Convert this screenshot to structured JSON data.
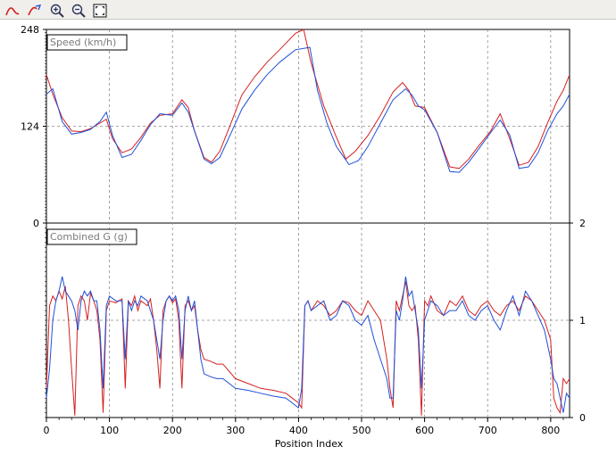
{
  "toolbar": {
    "items": [
      {
        "icon": "red-curve-icon"
      },
      {
        "icon": "curve-arrow-icon"
      },
      {
        "icon": "zoom-in-icon"
      },
      {
        "icon": "zoom-out-icon"
      },
      {
        "icon": "fit-to-screen-icon"
      }
    ]
  },
  "colors": {
    "series_red": "#d42020",
    "series_blue": "#2050d8",
    "grid": "#8a8a8a"
  },
  "chart_data": [
    {
      "type": "line",
      "title": "Speed (km/h)",
      "xlabel": "Position Index",
      "ylabel": "",
      "xlim": [
        0,
        830
      ],
      "ylim": [
        0,
        248
      ],
      "x_ticks": [
        "0",
        "100",
        "200",
        "300",
        "400",
        "500",
        "600",
        "700",
        "800"
      ],
      "y_ticks_left": [
        "248",
        "124",
        "0"
      ],
      "grid": true,
      "series": [
        {
          "color": "#d42020",
          "x": [
            0,
            10,
            25,
            40,
            55,
            70,
            85,
            95,
            105,
            120,
            135,
            150,
            165,
            180,
            200,
            215,
            225,
            235,
            250,
            262,
            275,
            290,
            310,
            330,
            350,
            370,
            395,
            408,
            420,
            440,
            460,
            475,
            490,
            510,
            530,
            550,
            565,
            575,
            585,
            600,
            620,
            640,
            655,
            670,
            685,
            705,
            720,
            735,
            750,
            765,
            780,
            795,
            810,
            820,
            830
          ],
          "y": [
            190,
            165,
            135,
            118,
            117,
            121,
            128,
            133,
            108,
            90,
            95,
            110,
            128,
            138,
            140,
            158,
            148,
            118,
            84,
            78,
            92,
            122,
            164,
            187,
            206,
            222,
            243,
            248,
            205,
            150,
            110,
            82,
            92,
            112,
            138,
            168,
            180,
            170,
            150,
            148,
            116,
            72,
            70,
            82,
            98,
            118,
            140,
            108,
            74,
            78,
            98,
            128,
            156,
            170,
            190
          ]
        },
        {
          "color": "#2050d8",
          "x": [
            0,
            10,
            25,
            40,
            55,
            70,
            85,
            95,
            105,
            120,
            135,
            150,
            165,
            180,
            200,
            215,
            225,
            235,
            250,
            262,
            275,
            290,
            310,
            330,
            350,
            370,
            395,
            418,
            430,
            445,
            460,
            480,
            495,
            510,
            530,
            550,
            570,
            580,
            590,
            600,
            620,
            640,
            655,
            670,
            685,
            705,
            720,
            735,
            750,
            765,
            780,
            795,
            810,
            820,
            830
          ],
          "y": [
            165,
            172,
            130,
            114,
            116,
            120,
            130,
            142,
            112,
            84,
            88,
            106,
            126,
            140,
            138,
            154,
            142,
            118,
            82,
            76,
            84,
            110,
            146,
            170,
            190,
            206,
            222,
            225,
            170,
            128,
            98,
            75,
            80,
            98,
            128,
            158,
            172,
            164,
            150,
            145,
            116,
            66,
            65,
            78,
            94,
            116,
            132,
            113,
            70,
            72,
            90,
            118,
            140,
            150,
            165
          ]
        }
      ]
    },
    {
      "type": "line",
      "title": "Combined G (g)",
      "xlabel": "Position Index",
      "ylabel": "",
      "xlim": [
        0,
        830
      ],
      "ylim": [
        0,
        2
      ],
      "y_ticks_right": [
        "2",
        "1",
        "0"
      ],
      "grid": true,
      "series": [
        {
          "color": "#d42020",
          "x": [
            0,
            5,
            10,
            15,
            20,
            25,
            30,
            35,
            40,
            45,
            50,
            55,
            60,
            65,
            70,
            75,
            80,
            85,
            90,
            95,
            100,
            110,
            120,
            125,
            130,
            135,
            140,
            145,
            150,
            160,
            165,
            170,
            175,
            180,
            185,
            190,
            195,
            200,
            205,
            210,
            215,
            220,
            225,
            230,
            235,
            240,
            245,
            250,
            260,
            270,
            280,
            300,
            320,
            340,
            360,
            380,
            390,
            400,
            405,
            410,
            415,
            420,
            430,
            440,
            450,
            460,
            470,
            480,
            490,
            500,
            510,
            520,
            530,
            540,
            545,
            550,
            555,
            560,
            565,
            570,
            575,
            580,
            585,
            590,
            595,
            600,
            605,
            610,
            620,
            630,
            640,
            650,
            660,
            670,
            680,
            690,
            700,
            710,
            720,
            730,
            740,
            750,
            760,
            770,
            780,
            790,
            800,
            805,
            810,
            815,
            820,
            825,
            830
          ],
          "y": [
            0.3,
            1.15,
            1.25,
            1.2,
            1.3,
            1.22,
            1.35,
            1.0,
            0.5,
            0.02,
            1.15,
            1.25,
            1.2,
            1.0,
            1.28,
            1.2,
            1.1,
            0.8,
            0.05,
            1.1,
            1.2,
            1.18,
            1.22,
            0.3,
            1.2,
            1.15,
            1.25,
            1.1,
            1.2,
            1.15,
            1.22,
            1.0,
            0.7,
            0.3,
            1.1,
            1.2,
            1.25,
            1.18,
            1.22,
            1.0,
            0.3,
            1.15,
            1.2,
            1.1,
            1.15,
            0.9,
            0.7,
            0.6,
            0.58,
            0.55,
            0.55,
            0.4,
            0.35,
            0.3,
            0.28,
            0.25,
            0.2,
            0.15,
            0.1,
            1.15,
            1.2,
            1.1,
            1.2,
            1.15,
            1.05,
            1.1,
            1.2,
            1.18,
            1.1,
            1.05,
            1.2,
            1.1,
            1.0,
            0.6,
            0.3,
            0.1,
            1.2,
            1.1,
            1.25,
            1.4,
            1.15,
            1.1,
            1.15,
            0.8,
            0.02,
            1.2,
            1.15,
            1.25,
            1.1,
            1.05,
            1.2,
            1.15,
            1.25,
            1.1,
            1.05,
            1.15,
            1.2,
            1.1,
            1.05,
            1.15,
            1.2,
            1.1,
            1.25,
            1.2,
            1.1,
            1.0,
            0.8,
            0.2,
            0.1,
            0.05,
            0.4,
            0.35,
            0.4
          ]
        },
        {
          "color": "#2050d8",
          "x": [
            0,
            5,
            10,
            15,
            20,
            25,
            30,
            35,
            40,
            45,
            50,
            55,
            60,
            65,
            70,
            75,
            80,
            85,
            90,
            95,
            100,
            110,
            120,
            125,
            130,
            135,
            140,
            145,
            150,
            160,
            165,
            170,
            175,
            180,
            185,
            190,
            195,
            200,
            205,
            210,
            215,
            220,
            225,
            230,
            235,
            240,
            245,
            250,
            260,
            270,
            280,
            300,
            320,
            340,
            360,
            380,
            390,
            400,
            405,
            410,
            415,
            420,
            430,
            440,
            450,
            460,
            470,
            480,
            490,
            500,
            510,
            520,
            530,
            540,
            545,
            550,
            555,
            560,
            565,
            570,
            575,
            580,
            585,
            590,
            595,
            600,
            605,
            610,
            620,
            630,
            640,
            650,
            660,
            670,
            680,
            690,
            700,
            710,
            720,
            730,
            740,
            750,
            760,
            770,
            780,
            790,
            800,
            805,
            810,
            815,
            820,
            825,
            830
          ],
          "y": [
            0.2,
            0.5,
            1.0,
            1.2,
            1.3,
            1.45,
            1.3,
            1.25,
            1.2,
            1.1,
            0.9,
            1.2,
            1.3,
            1.25,
            1.3,
            1.2,
            1.2,
            0.9,
            0.3,
            1.15,
            1.25,
            1.2,
            1.2,
            0.6,
            1.2,
            1.1,
            1.2,
            1.15,
            1.25,
            1.2,
            1.1,
            1.0,
            0.8,
            0.6,
            1.0,
            1.2,
            1.25,
            1.2,
            1.25,
            1.1,
            0.6,
            1.1,
            1.25,
            1.1,
            1.2,
            0.9,
            0.6,
            0.45,
            0.42,
            0.4,
            0.4,
            0.3,
            0.28,
            0.25,
            0.22,
            0.2,
            0.15,
            0.1,
            0.3,
            1.15,
            1.2,
            1.1,
            1.15,
            1.2,
            1.0,
            1.05,
            1.2,
            1.15,
            1.0,
            0.95,
            1.05,
            0.8,
            0.6,
            0.4,
            0.2,
            0.2,
            1.1,
            1.0,
            1.2,
            1.45,
            1.25,
            1.3,
            1.1,
            0.9,
            0.3,
            1.0,
            1.1,
            1.2,
            1.15,
            1.05,
            1.1,
            1.1,
            1.2,
            1.05,
            1.0,
            1.1,
            1.15,
            1.0,
            0.9,
            1.1,
            1.25,
            1.05,
            1.3,
            1.2,
            1.05,
            0.9,
            0.6,
            0.4,
            0.35,
            0.2,
            0.05,
            0.25,
            0.2
          ]
        }
      ]
    }
  ]
}
